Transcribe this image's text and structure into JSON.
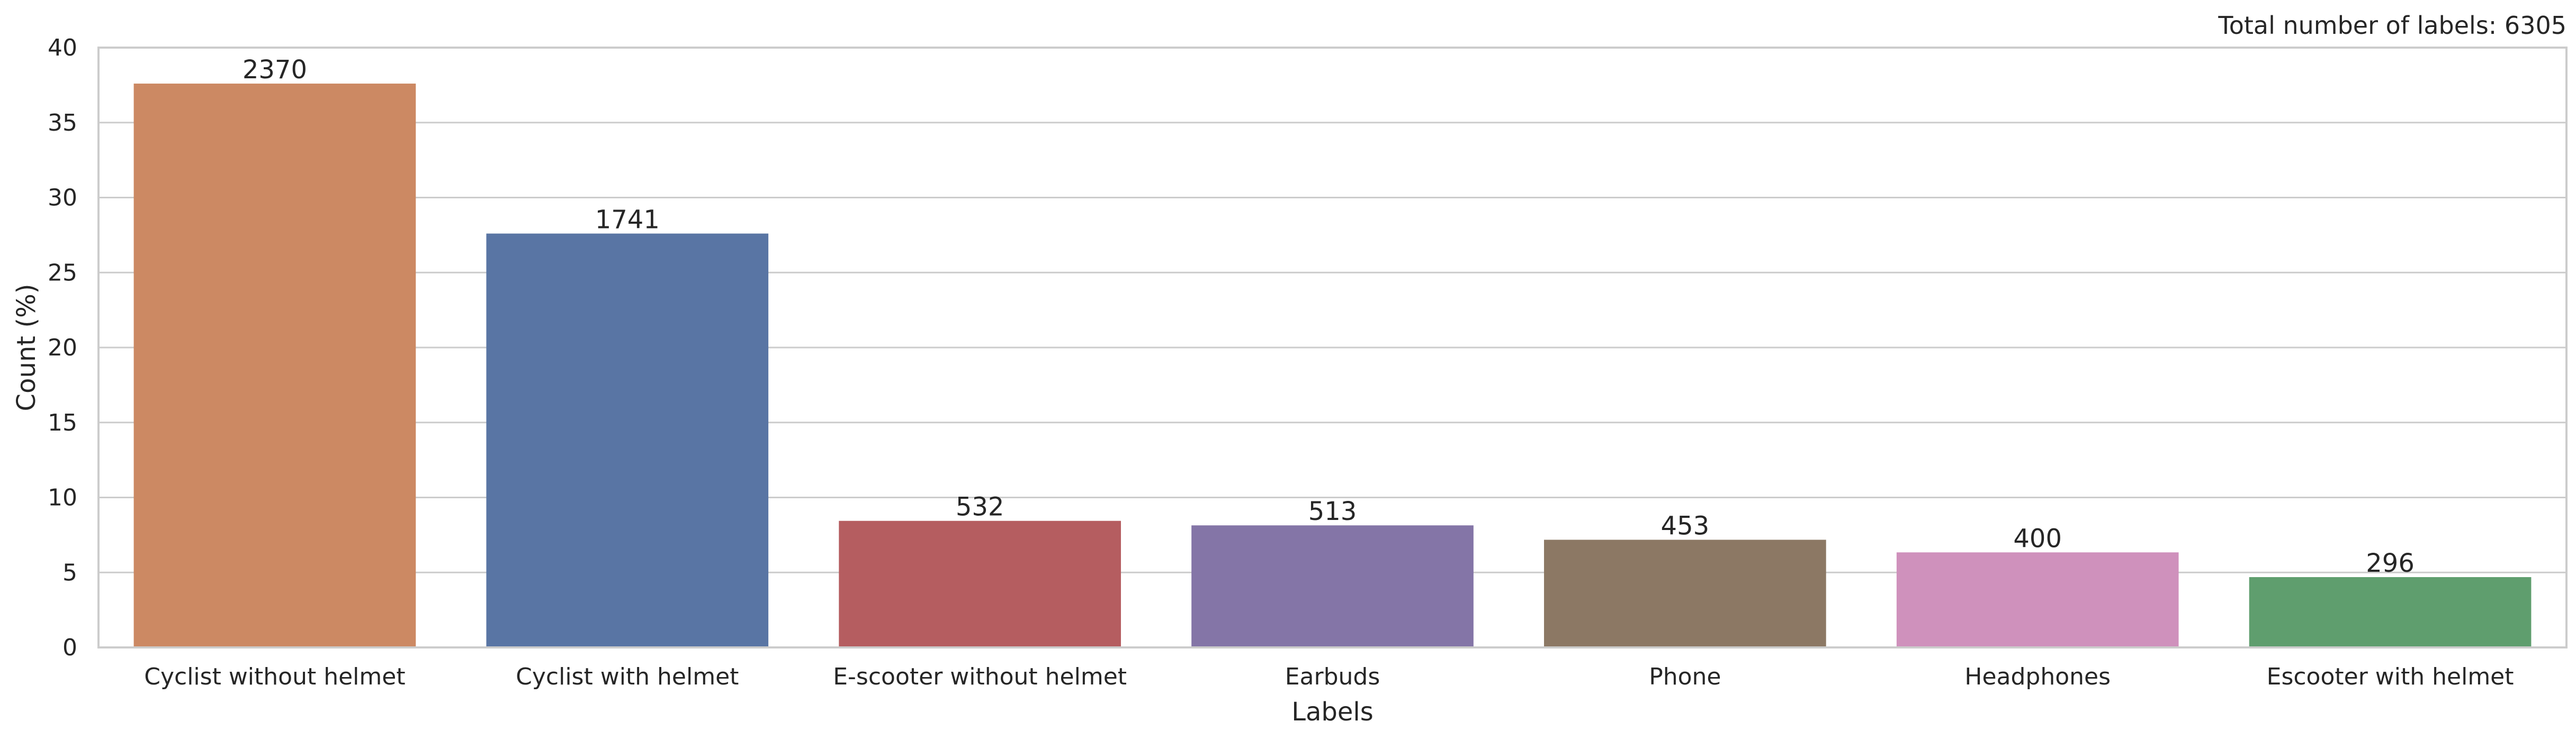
{
  "chart_data": {
    "type": "bar",
    "title": "",
    "annotation": "Total number of labels: 6305",
    "xlabel": "Labels",
    "ylabel": "Count (%)",
    "ylim": [
      0,
      40
    ],
    "yticks": [
      0,
      5,
      10,
      15,
      20,
      25,
      30,
      35,
      40
    ],
    "grid": "horizontal",
    "categories": [
      "Cyclist without helmet",
      "Cyclist with helmet",
      "E-scooter without helmet",
      "Earbuds",
      "Phone",
      "Headphones",
      "Escooter with helmet"
    ],
    "values": [
      37.6,
      27.6,
      8.44,
      8.14,
      7.18,
      6.34,
      4.69
    ],
    "data_labels": [
      "2370",
      "1741",
      "532",
      "513",
      "453",
      "400",
      "296"
    ],
    "colors": [
      "#CC8963",
      "#5975A4",
      "#B55D60",
      "#8475A7",
      "#8C7864",
      "#CF91BC",
      "#5F9E6E"
    ]
  }
}
